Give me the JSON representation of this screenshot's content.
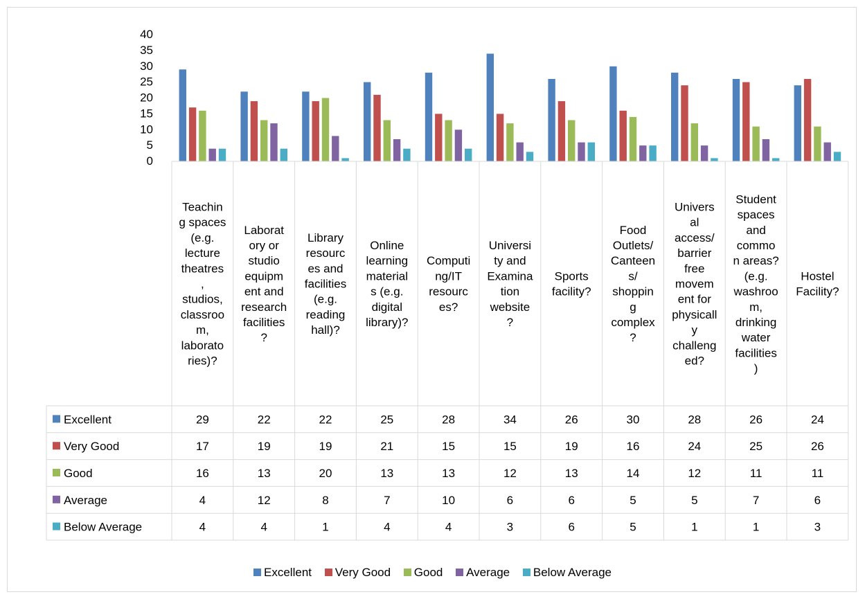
{
  "chart_data": {
    "type": "bar",
    "categories": [
      "Teaching spaces (e.g. lecture theatres, studios, classroom, laboratories)?",
      "Laboratory or studio equipment and research facilities?",
      "Library resources and facilities (e.g. reading hall)?",
      "Online learning materials (e.g. digital library)?",
      "Computing/IT resources?",
      "University and Examination website?",
      "Sports facility?",
      "Food Outlets/Canteens/shopping complex?",
      "Universal access/barrier free movement for physically challenged?",
      "Student spaces and common areas? (e.g. washroom, drinking water facilities)",
      "Hostel Facility?"
    ],
    "category_lines": [
      [
        "Teachin",
        "g spaces",
        "(e.g.",
        "lecture",
        "theatres",
        ",",
        "studios,",
        "classroo",
        "m,",
        "laborato",
        "ries)?"
      ],
      [
        "Laborat",
        "ory or",
        "studio",
        "equipm",
        "ent and",
        "research",
        "facilities",
        "?"
      ],
      [
        "Library",
        "resourc",
        "es and",
        "facilities",
        "(e.g.",
        "reading",
        "hall)?"
      ],
      [
        "Online",
        "learning",
        "material",
        "s (e.g.",
        "digital",
        "library)?"
      ],
      [
        "Computi",
        "ng/IT",
        "resourc",
        "es?"
      ],
      [
        "Universi",
        "ty and",
        "Examina",
        "tion",
        "website",
        "?"
      ],
      [
        "Sports",
        "facility?"
      ],
      [
        "Food",
        "Outlets/",
        "Canteen",
        "s/",
        "shoppin",
        "g",
        "complex",
        "?"
      ],
      [
        "Univers",
        "al",
        "access/",
        "barrier",
        "free",
        "movem",
        "ent for",
        "physicall",
        "y",
        "challeng",
        "ed?"
      ],
      [
        "Student",
        "spaces",
        "and",
        "commo",
        "n areas?",
        "(e.g.",
        "washroo",
        "m,",
        "drinking",
        "water",
        "facilities",
        ")"
      ],
      [
        "Hostel",
        "Facility?"
      ]
    ],
    "series": [
      {
        "name": "Excellent",
        "color": "#4f81bd",
        "values": [
          29,
          22,
          22,
          25,
          28,
          34,
          26,
          30,
          28,
          26,
          24
        ]
      },
      {
        "name": "Very Good",
        "color": "#c0504d",
        "values": [
          17,
          19,
          19,
          21,
          15,
          15,
          19,
          16,
          24,
          25,
          26
        ]
      },
      {
        "name": "Good",
        "color": "#9bbb59",
        "values": [
          16,
          13,
          20,
          13,
          13,
          12,
          13,
          14,
          12,
          11,
          11
        ]
      },
      {
        "name": "Average",
        "color": "#8064a2",
        "values": [
          4,
          12,
          8,
          7,
          10,
          6,
          6,
          5,
          5,
          7,
          6
        ]
      },
      {
        "name": "Below Average",
        "color": "#4bacc6",
        "values": [
          4,
          4,
          1,
          4,
          4,
          3,
          6,
          5,
          1,
          1,
          3
        ]
      }
    ],
    "yticks": [
      "0",
      "5",
      "10",
      "15",
      "20",
      "25",
      "30",
      "35",
      "40"
    ],
    "ylim": [
      0,
      40
    ],
    "title": "",
    "xlabel": "",
    "ylabel": "",
    "grid": false,
    "legend_position": "bottom",
    "data_table": true
  }
}
